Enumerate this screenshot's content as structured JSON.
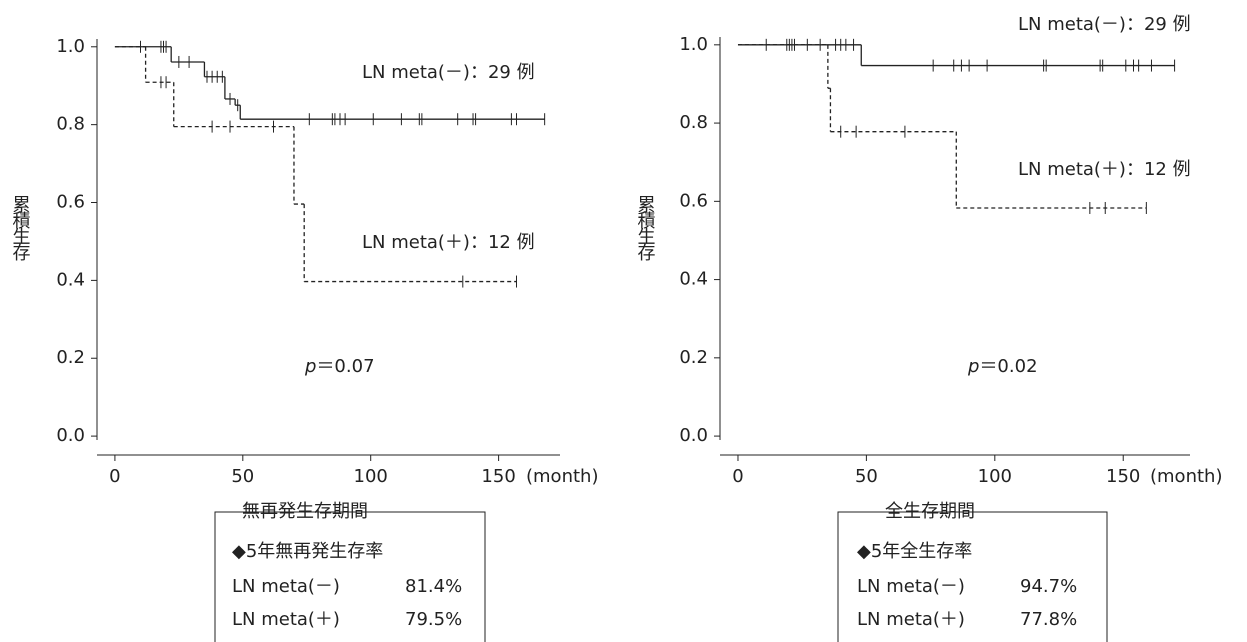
{
  "chart_data": [
    {
      "type": "step",
      "ylabel": "累積生存",
      "xlabel": "無再発生存期間",
      "x_unit": "(month)",
      "annotation": {
        "italic": "p",
        "text": "＝0.07"
      },
      "xlim": [
        -7,
        174
      ],
      "ylim": [
        -0.01,
        1.02
      ],
      "xticks": [
        0,
        50,
        100,
        150
      ],
      "yticks": [
        {
          "value": 0,
          "label": "0.0"
        },
        0.2,
        0.4,
        0.6,
        0.8,
        {
          "value": 1,
          "label": "1.0"
        }
      ],
      "series": [
        {
          "name": "LN meta(－)：29 例",
          "color": "#222222",
          "dashed": false,
          "x": [
            0,
            22,
            35,
            43,
            47,
            49
          ],
          "values": [
            1,
            0.961,
            0.923,
            0.866,
            0.85,
            0.814
          ],
          "censored": {
            "x": [
              10,
              18,
              19,
              20,
              25,
              29,
              36,
              38,
              40,
              42,
              45,
              48,
              76,
              85,
              86,
              88,
              90,
              101,
              112,
              119,
              120,
              134,
              140,
              141,
              155,
              157,
              168
            ],
            "y": [
              1,
              1,
              1,
              1,
              0.961,
              0.961,
              0.923,
              0.923,
              0.923,
              0.923,
              0.866,
              0.85,
              0.814,
              0.814,
              0.814,
              0.814,
              0.814,
              0.814,
              0.814,
              0.814,
              0.814,
              0.814,
              0.814,
              0.814,
              0.814,
              0.814,
              0.814
            ]
          }
        },
        {
          "name": "LN meta(＋)：12 例",
          "color": "#222222",
          "dashed": true,
          "x": [
            0,
            12,
            23,
            70,
            74
          ],
          "values": [
            1,
            0.909,
            0.795,
            0.596,
            0.397
          ],
          "censored": {
            "x": [
              18,
              20,
              38,
              45,
              62,
              136,
              157
            ],
            "y": [
              0.909,
              0.909,
              0.795,
              0.795,
              0.795,
              0.397,
              0.397
            ]
          }
        }
      ],
      "summary": {
        "title": "◆5年無再発生存率",
        "rows": [
          [
            "LN meta(－)",
            "81.4%"
          ],
          [
            "LN meta(＋)",
            "79.5%"
          ]
        ]
      }
    },
    {
      "type": "step",
      "ylabel": "累積生存",
      "xlabel": "全生存期間",
      "x_unit": "(month)",
      "annotation": {
        "italic": "p",
        "text": "＝0.02"
      },
      "xlim": [
        -7,
        176
      ],
      "ylim": [
        -0.01,
        1.02
      ],
      "xticks": [
        0,
        50,
        100,
        150
      ],
      "yticks": [
        {
          "value": 0,
          "label": "0.0"
        },
        0.2,
        0.4,
        0.6,
        0.8,
        {
          "value": 1,
          "label": "1.0"
        }
      ],
      "series": [
        {
          "name": "LN meta(－)：29 例",
          "color": "#222222",
          "dashed": false,
          "x": [
            0,
            48
          ],
          "values": [
            1,
            0.947
          ],
          "censored": {
            "x": [
              11,
              19,
              20,
              21,
              22,
              27,
              32,
              38,
              40,
              42,
              45,
              76,
              84,
              87,
              90,
              97,
              119,
              120,
              141,
              142,
              151,
              154,
              156,
              161,
              170
            ],
            "y": [
              1,
              1,
              1,
              1,
              1,
              1,
              1,
              1,
              1,
              1,
              1,
              0.947,
              0.947,
              0.947,
              0.947,
              0.947,
              0.947,
              0.947,
              0.947,
              0.947,
              0.947,
              0.947,
              0.947,
              0.947,
              0.947
            ]
          }
        },
        {
          "name": "LN meta(＋)：12 例",
          "color": "#222222",
          "dashed": true,
          "x": [
            0,
            35,
            36,
            85
          ],
          "values": [
            1,
            0.889,
            0.778,
            0.583
          ],
          "censored": {
            "x": [
              40,
              46,
              65,
              137,
              143,
              159
            ],
            "y": [
              0.778,
              0.778,
              0.778,
              0.583,
              0.583,
              0.583
            ]
          }
        }
      ],
      "summary": {
        "title": "◆5年全生存率",
        "rows": [
          [
            "LN meta(－)",
            "94.7%"
          ],
          [
            "LN meta(＋)",
            "77.8%"
          ]
        ]
      }
    }
  ]
}
